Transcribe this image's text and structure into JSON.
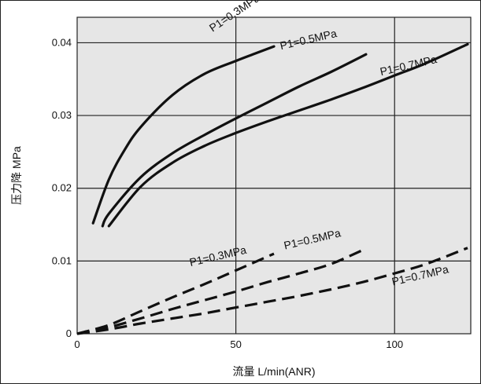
{
  "chart_data": {
    "type": "line",
    "xlabel": "流量 L/min(ANR)",
    "ylabel": "压力降 MPa",
    "xlim": [
      0,
      124
    ],
    "ylim": [
      0,
      0.0435
    ],
    "x_ticks": [
      "0",
      "50",
      "100"
    ],
    "x_tick_values": [
      0,
      50,
      100
    ],
    "y_ticks": [
      "0",
      "0.01",
      "0.02",
      "0.03",
      "0.04"
    ],
    "y_tick_values": [
      0,
      0.01,
      0.02,
      0.03,
      0.04
    ],
    "grid": true,
    "series": [
      {
        "name": "P1=0.3MPa",
        "style": "solid",
        "x": [
          5,
          10,
          15,
          20,
          30,
          40,
          50,
          56,
          62
        ],
        "y": [
          0.0152,
          0.0212,
          0.0253,
          0.0284,
          0.0328,
          0.0357,
          0.0375,
          0.0385,
          0.0395
        ]
      },
      {
        "name": "P1=0.5MPa",
        "style": "solid",
        "x": [
          8,
          10,
          20,
          30,
          40,
          50,
          60,
          70,
          80,
          91
        ],
        "y": [
          0.0148,
          0.0165,
          0.0215,
          0.0248,
          0.0273,
          0.0296,
          0.0318,
          0.034,
          0.036,
          0.0384
        ]
      },
      {
        "name": "P1=0.7MPa",
        "style": "solid",
        "x": [
          10,
          20,
          30,
          40,
          50,
          60,
          70,
          80,
          90,
          100,
          110,
          123
        ],
        "y": [
          0.0148,
          0.0202,
          0.0235,
          0.0258,
          0.0276,
          0.0292,
          0.0307,
          0.0322,
          0.0338,
          0.0355,
          0.0372,
          0.0398
        ]
      },
      {
        "name": "P1=0.3MPa",
        "style": "dashed",
        "x": [
          0,
          10,
          20,
          30,
          40,
          50,
          62
        ],
        "y": [
          0,
          0.0012,
          0.0031,
          0.005,
          0.0068,
          0.0087,
          0.011
        ]
      },
      {
        "name": "P1=0.5MPa",
        "style": "dashed",
        "x": [
          0,
          10,
          20,
          30,
          40,
          50,
          60,
          70,
          80,
          91
        ],
        "y": [
          0,
          0.0009,
          0.0021,
          0.0034,
          0.0046,
          0.0058,
          0.0071,
          0.0083,
          0.0096,
          0.0117
        ]
      },
      {
        "name": "P1=0.7MPa",
        "style": "dashed",
        "x": [
          0,
          10,
          20,
          30,
          40,
          50,
          60,
          70,
          80,
          90,
          100,
          110,
          123
        ],
        "y": [
          0,
          0.0006,
          0.0014,
          0.0021,
          0.0028,
          0.0036,
          0.0044,
          0.0052,
          0.0061,
          0.0071,
          0.0083,
          0.0096,
          0.0118
        ]
      }
    ],
    "colors": {
      "plot_background": "#e6e6e6",
      "grid": "#222222",
      "curves": "#111111"
    }
  }
}
